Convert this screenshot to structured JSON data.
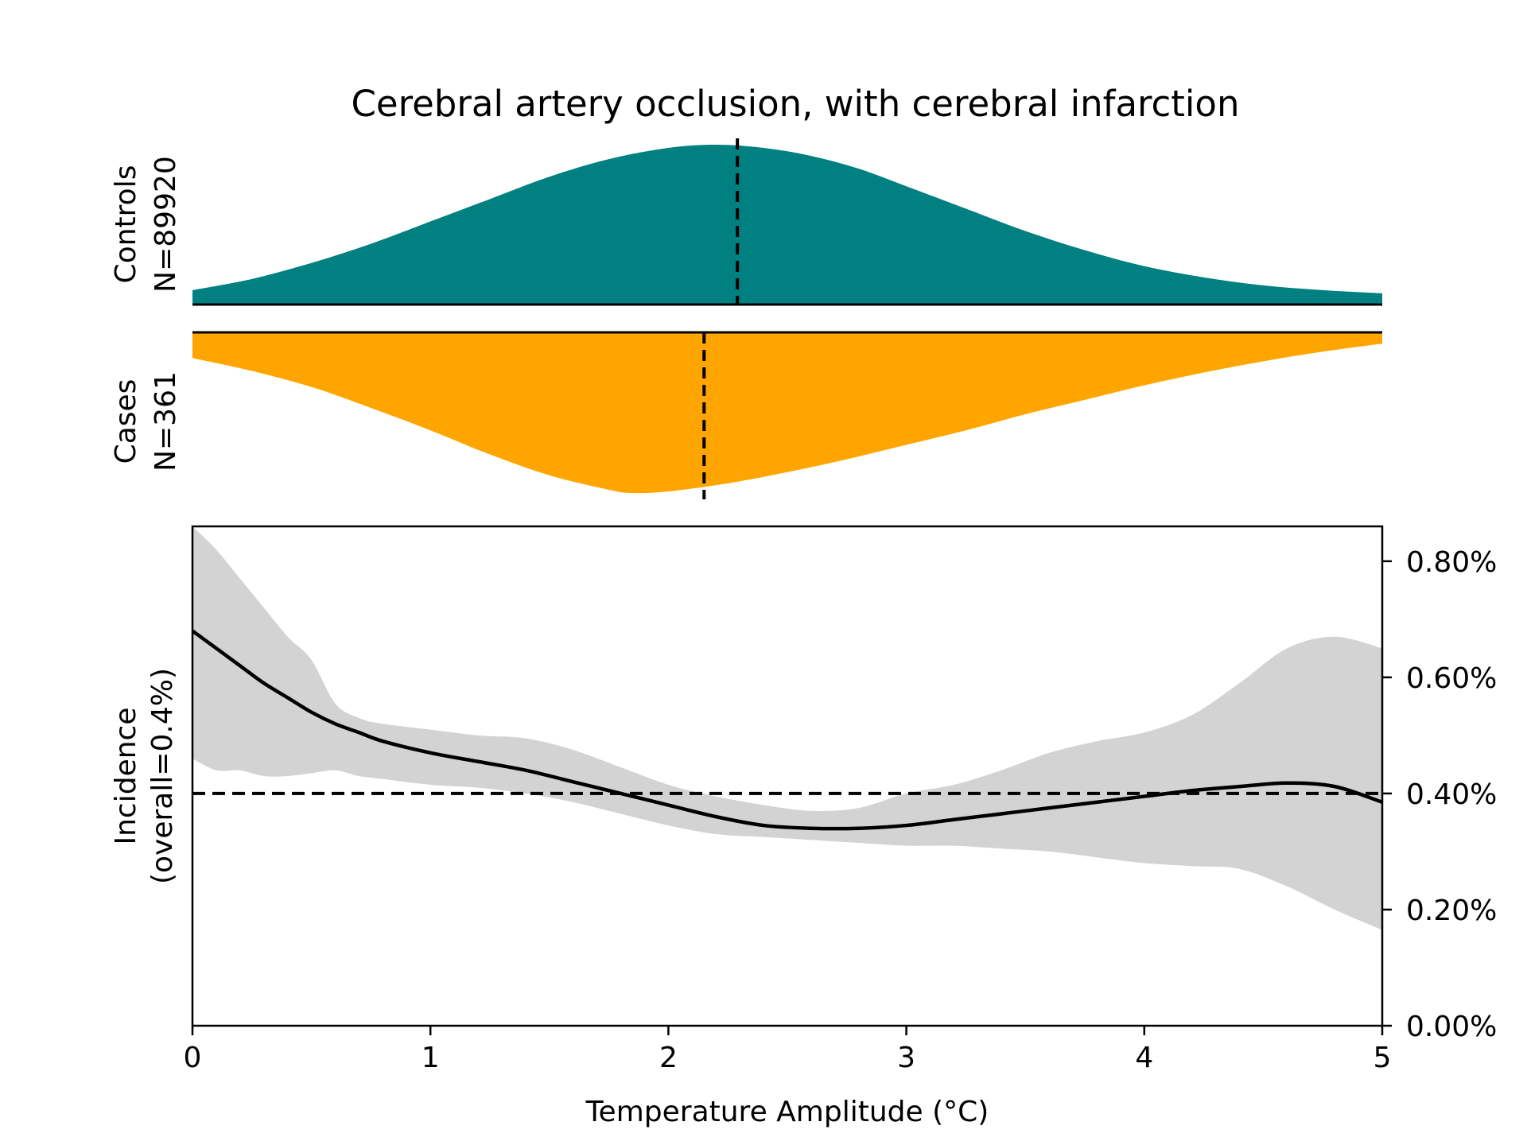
{
  "chart_data": {
    "type": "area",
    "title": "Cerebral artery occlusion, with cerebral infarction",
    "xlabel": "Temperature Amplitude (°C)",
    "xlim": [
      0,
      5
    ],
    "x_ticks": [
      0,
      1,
      2,
      3,
      4,
      5
    ],
    "x_tick_labels": [
      "0",
      "1",
      "2",
      "3",
      "4",
      "5"
    ],
    "controls": {
      "label": "Controls",
      "n_label": "N=89920",
      "color": "#008080",
      "median": 2.29,
      "density": [
        {
          "x": 0.0,
          "y": 0.09
        },
        {
          "x": 0.25,
          "y": 0.16
        },
        {
          "x": 0.5,
          "y": 0.26
        },
        {
          "x": 0.75,
          "y": 0.38
        },
        {
          "x": 1.0,
          "y": 0.52
        },
        {
          "x": 1.25,
          "y": 0.66
        },
        {
          "x": 1.5,
          "y": 0.8
        },
        {
          "x": 1.75,
          "y": 0.91
        },
        {
          "x": 2.0,
          "y": 0.98
        },
        {
          "x": 2.2,
          "y": 1.0
        },
        {
          "x": 2.4,
          "y": 0.98
        },
        {
          "x": 2.6,
          "y": 0.93
        },
        {
          "x": 2.8,
          "y": 0.85
        },
        {
          "x": 3.0,
          "y": 0.74
        },
        {
          "x": 3.25,
          "y": 0.6
        },
        {
          "x": 3.5,
          "y": 0.46
        },
        {
          "x": 3.75,
          "y": 0.34
        },
        {
          "x": 4.0,
          "y": 0.24
        },
        {
          "x": 4.25,
          "y": 0.17
        },
        {
          "x": 4.5,
          "y": 0.12
        },
        {
          "x": 4.75,
          "y": 0.09
        },
        {
          "x": 5.0,
          "y": 0.07
        }
      ]
    },
    "cases": {
      "label": "Cases",
      "n_label": "N=361",
      "color": "#ffa500",
      "median": 2.15,
      "density": [
        {
          "x": 0.0,
          "y": 0.16
        },
        {
          "x": 0.25,
          "y": 0.24
        },
        {
          "x": 0.5,
          "y": 0.34
        },
        {
          "x": 0.75,
          "y": 0.47
        },
        {
          "x": 1.0,
          "y": 0.61
        },
        {
          "x": 1.25,
          "y": 0.76
        },
        {
          "x": 1.5,
          "y": 0.89
        },
        {
          "x": 1.75,
          "y": 0.98
        },
        {
          "x": 1.85,
          "y": 1.0
        },
        {
          "x": 2.0,
          "y": 0.99
        },
        {
          "x": 2.25,
          "y": 0.94
        },
        {
          "x": 2.5,
          "y": 0.87
        },
        {
          "x": 2.75,
          "y": 0.79
        },
        {
          "x": 3.0,
          "y": 0.7
        },
        {
          "x": 3.25,
          "y": 0.61
        },
        {
          "x": 3.5,
          "y": 0.51
        },
        {
          "x": 3.75,
          "y": 0.42
        },
        {
          "x": 4.0,
          "y": 0.33
        },
        {
          "x": 4.25,
          "y": 0.25
        },
        {
          "x": 4.5,
          "y": 0.18
        },
        {
          "x": 4.75,
          "y": 0.12
        },
        {
          "x": 5.0,
          "y": 0.07
        }
      ]
    },
    "incidence": {
      "ylabel_line1": "Incidence",
      "ylabel_line2": "(overall=0.4%)",
      "ylim": [
        0,
        0.86
      ],
      "y_ticks": [
        0,
        0.2,
        0.4,
        0.6,
        0.8
      ],
      "y_tick_labels": [
        "0.00%",
        "0.20%",
        "0.40%",
        "0.60%",
        "0.80%"
      ],
      "overall": 0.4,
      "ci_color": "#d3d3d3",
      "points": [
        {
          "x": 0.0,
          "y": 0.68,
          "lo": 0.46,
          "hi": 0.86
        },
        {
          "x": 0.1,
          "y": 0.65,
          "lo": 0.44,
          "hi": 0.82
        },
        {
          "x": 0.2,
          "y": 0.62,
          "lo": 0.44,
          "hi": 0.77
        },
        {
          "x": 0.3,
          "y": 0.59,
          "lo": 0.43,
          "hi": 0.72
        },
        {
          "x": 0.4,
          "y": 0.565,
          "lo": 0.43,
          "hi": 0.67
        },
        {
          "x": 0.5,
          "y": 0.54,
          "lo": 0.435,
          "hi": 0.63
        },
        {
          "x": 0.6,
          "y": 0.52,
          "lo": 0.44,
          "hi": 0.555
        },
        {
          "x": 0.7,
          "y": 0.505,
          "lo": 0.43,
          "hi": 0.53
        },
        {
          "x": 0.8,
          "y": 0.49,
          "lo": 0.425,
          "hi": 0.52
        },
        {
          "x": 1.0,
          "y": 0.47,
          "lo": 0.415,
          "hi": 0.51
        },
        {
          "x": 1.2,
          "y": 0.455,
          "lo": 0.41,
          "hi": 0.5
        },
        {
          "x": 1.4,
          "y": 0.44,
          "lo": 0.4,
          "hi": 0.495
        },
        {
          "x": 1.6,
          "y": 0.42,
          "lo": 0.385,
          "hi": 0.475
        },
        {
          "x": 1.8,
          "y": 0.4,
          "lo": 0.365,
          "hi": 0.445
        },
        {
          "x": 2.0,
          "y": 0.38,
          "lo": 0.345,
          "hi": 0.415
        },
        {
          "x": 2.2,
          "y": 0.36,
          "lo": 0.33,
          "hi": 0.395
        },
        {
          "x": 2.4,
          "y": 0.345,
          "lo": 0.325,
          "hi": 0.38
        },
        {
          "x": 2.6,
          "y": 0.34,
          "lo": 0.32,
          "hi": 0.37
        },
        {
          "x": 2.8,
          "y": 0.34,
          "lo": 0.315,
          "hi": 0.375
        },
        {
          "x": 3.0,
          "y": 0.345,
          "lo": 0.31,
          "hi": 0.4
        },
        {
          "x": 3.2,
          "y": 0.355,
          "lo": 0.31,
          "hi": 0.415
        },
        {
          "x": 3.4,
          "y": 0.365,
          "lo": 0.305,
          "hi": 0.44
        },
        {
          "x": 3.6,
          "y": 0.375,
          "lo": 0.3,
          "hi": 0.47
        },
        {
          "x": 3.8,
          "y": 0.385,
          "lo": 0.29,
          "hi": 0.49
        },
        {
          "x": 4.0,
          "y": 0.395,
          "lo": 0.28,
          "hi": 0.505
        },
        {
          "x": 4.2,
          "y": 0.405,
          "lo": 0.275,
          "hi": 0.535
        },
        {
          "x": 4.4,
          "y": 0.412,
          "lo": 0.27,
          "hi": 0.59
        },
        {
          "x": 4.6,
          "y": 0.418,
          "lo": 0.24,
          "hi": 0.65
        },
        {
          "x": 4.8,
          "y": 0.412,
          "lo": 0.2,
          "hi": 0.67
        },
        {
          "x": 5.0,
          "y": 0.385,
          "lo": 0.165,
          "hi": 0.65
        }
      ]
    }
  }
}
